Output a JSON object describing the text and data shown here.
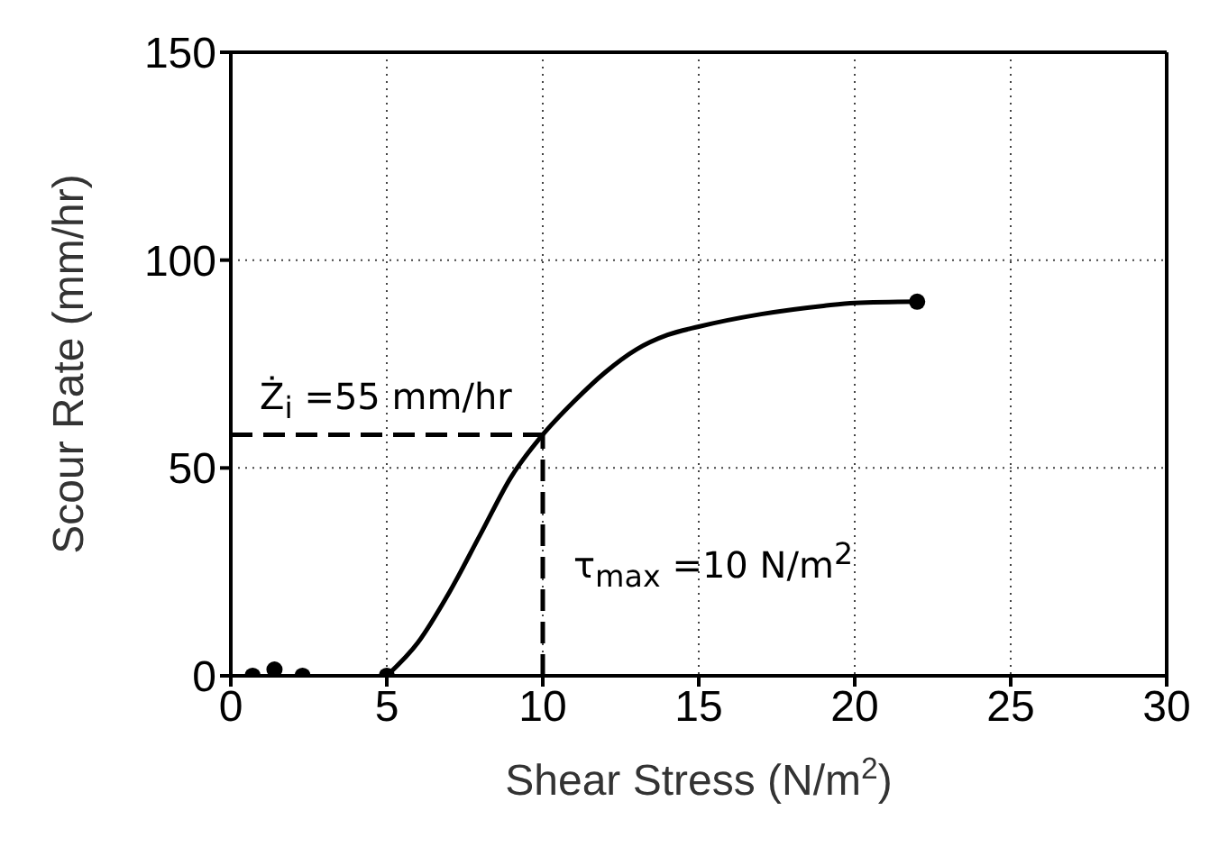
{
  "chart_data": {
    "type": "line",
    "xlabel": "Shear Stress (N/m$^{2}$)",
    "ylabel": "Scour Rate (mm/hr)",
    "xlim": [
      0,
      30
    ],
    "xticks": [
      0,
      5,
      10,
      15,
      20,
      25,
      30
    ],
    "ylim": [
      0,
      150
    ],
    "yticks": [
      0,
      50,
      100,
      150
    ],
    "grid": true,
    "series": [
      {
        "type": "scatter",
        "color": "#000000",
        "marker": "circle",
        "x": [
          0.7,
          1.4,
          2.3,
          5,
          22
        ],
        "values": [
          0,
          1.5,
          0,
          0,
          90
        ]
      },
      {
        "color": "#000000",
        "marker": "none",
        "line_style": "solid",
        "x": [
          5,
          6,
          7,
          8,
          9,
          10,
          11,
          12,
          13,
          14,
          15,
          17,
          19,
          20,
          22
        ],
        "values": [
          0,
          8,
          20,
          34,
          48,
          58,
          66,
          73,
          78.5,
          82,
          84,
          87,
          89,
          89.7,
          90
        ]
      },
      {
        "color": "#000000",
        "marker": "none",
        "line_style": "dashed",
        "x": [
          0,
          10
        ],
        "values": [
          58,
          58
        ]
      },
      {
        "color": "#000000",
        "marker": "none",
        "line_style": "dashed",
        "x": [
          10,
          10
        ],
        "values": [
          0,
          58
        ]
      }
    ],
    "annotations": [
      "Ż$_{i}$ =55 mm/hr",
      "τ$_{max}$ =10 N/m$^{2}$"
    ]
  }
}
